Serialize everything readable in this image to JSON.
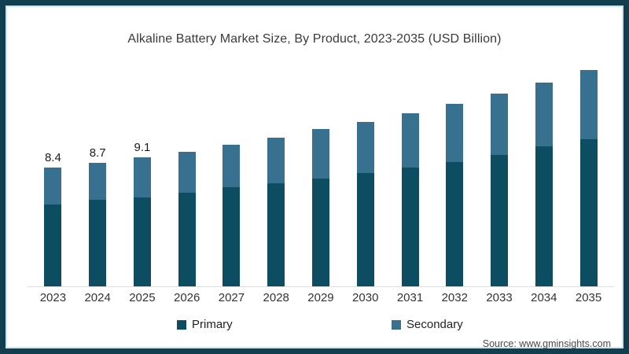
{
  "page": {
    "title": "Alkaline Battery Market Size, By Product, 2023-2035 (USD Billion)",
    "source": "Source: www.gminsights.com"
  },
  "colors": {
    "primary_series": "#0d4d61",
    "secondary_series": "#38708f",
    "frame_border": "#123f4f",
    "frame_inner_line": "#cde4ee",
    "axis_line": "#dedede"
  },
  "chart_data": {
    "type": "bar",
    "stacked": true,
    "title": "Alkaline Battery Market Size, By Product, 2023-2035 (USD Billion)",
    "unit": "USD Billion",
    "xlabel": "",
    "ylabel": "",
    "grid": false,
    "legend_position": "bottom",
    "categories": [
      "2023",
      "2024",
      "2025",
      "2026",
      "2027",
      "2028",
      "2029",
      "2030",
      "2031",
      "2032",
      "2033",
      "2034",
      "2035"
    ],
    "series": [
      {
        "name": "Primary",
        "color": "#0d4d61",
        "values": [
          5.8,
          6.1,
          6.3,
          6.6,
          7.0,
          7.3,
          7.6,
          8.0,
          8.4,
          8.8,
          9.3,
          9.9,
          10.4
        ]
      },
      {
        "name": "Secondary",
        "color": "#38708f",
        "values": [
          2.6,
          2.6,
          2.8,
          2.9,
          3.0,
          3.2,
          3.5,
          3.6,
          3.8,
          4.1,
          4.3,
          4.5,
          4.9
        ]
      }
    ],
    "totals": [
      8.4,
      8.7,
      9.1,
      9.5,
      10.0,
      10.5,
      11.1,
      11.6,
      12.2,
      12.9,
      13.6,
      14.4,
      15.3
    ],
    "bar_labels": [
      "8.4",
      "8.7",
      "9.1",
      "",
      "",
      "",
      "",
      "",
      "",
      "",
      "",
      "",
      ""
    ],
    "ylim": [
      0,
      16
    ]
  },
  "legend": {
    "items": [
      {
        "label": "Primary"
      },
      {
        "label": "Secondary"
      }
    ]
  }
}
